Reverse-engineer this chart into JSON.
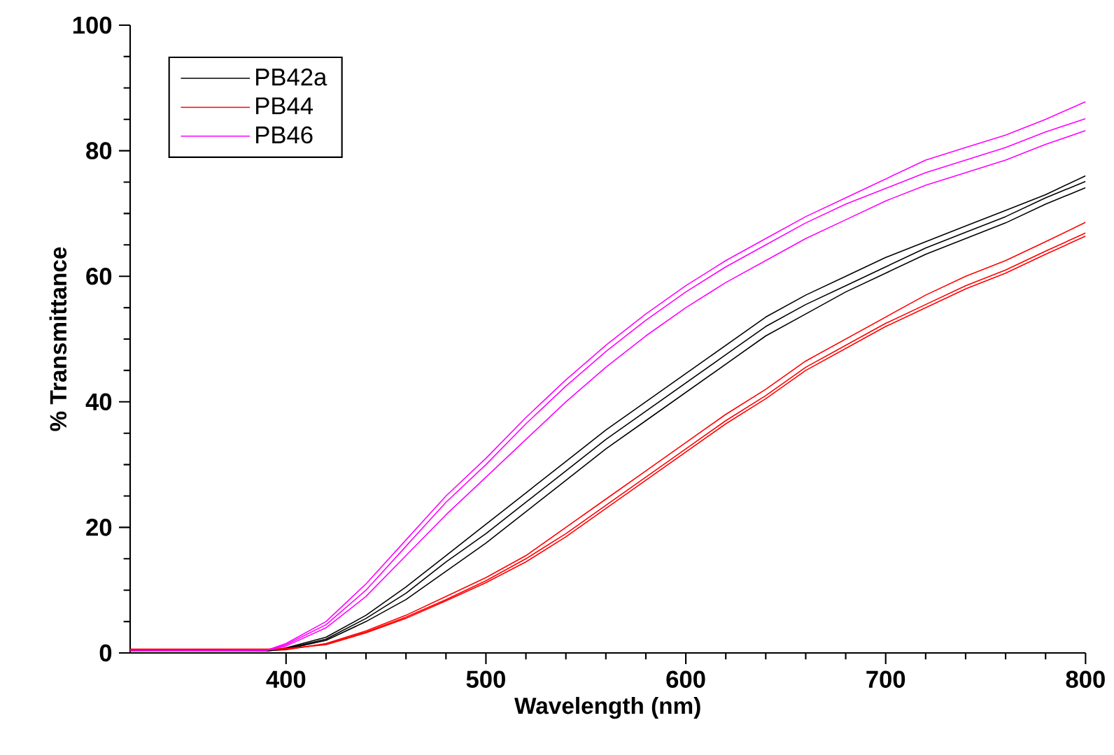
{
  "chart_data": {
    "type": "line",
    "xlabel": "Wavelength (nm)",
    "ylabel": "% Transmittance",
    "x": [
      322,
      390,
      400,
      420,
      440,
      460,
      480,
      500,
      520,
      540,
      560,
      580,
      600,
      620,
      640,
      660,
      680,
      700,
      720,
      740,
      760,
      780,
      800
    ],
    "series": [
      {
        "name": "PB42a",
        "color": "#000000",
        "values": [
          0.3,
          0.3,
          0.8,
          2.5,
          6,
          10.5,
          15.5,
          20.5,
          25.5,
          30.5,
          35.5,
          40,
          44.5,
          49,
          53.5,
          57,
          60,
          63,
          65.5,
          68,
          70.5,
          73,
          76
        ]
      },
      {
        "name": "PB44",
        "color": "#ff0000",
        "values": [
          0.4,
          0.4,
          0.5,
          1.5,
          3.5,
          6,
          9,
          12,
          15.5,
          20,
          24.5,
          29,
          33.5,
          38,
          42,
          46.5,
          50,
          53.5,
          57,
          60,
          62.5,
          65.5,
          68.6
        ]
      },
      {
        "name": "PB46",
        "color": "#ff00ff",
        "values": [
          0.3,
          0.4,
          1.5,
          5,
          11,
          18,
          25,
          31,
          37.5,
          43.5,
          49,
          54,
          58.5,
          62.5,
          66,
          69.5,
          72.5,
          75.5,
          78.5,
          80.5,
          82.5,
          85,
          87.8
        ]
      },
      {
        "color": "#000000",
        "values": [
          0.3,
          0.3,
          0.7,
          2.2,
          5.5,
          9.5,
          14.5,
          19,
          24,
          29,
          34,
          38.5,
          43,
          47.5,
          52,
          55.5,
          58.5,
          61.5,
          64.5,
          67,
          69.5,
          72.5,
          75.1
        ]
      },
      {
        "color": "#000000",
        "values": [
          0.3,
          0.3,
          0.6,
          2,
          5,
          8.5,
          13,
          17.5,
          22.5,
          27.5,
          32.5,
          37,
          41.5,
          46,
          50.5,
          54,
          57.5,
          60.5,
          63.5,
          66,
          68.5,
          71.5,
          74.1
        ]
      },
      {
        "color": "#ff0000",
        "values": [
          0.5,
          0.5,
          0.6,
          1.4,
          3.3,
          5.7,
          8.5,
          11.5,
          15,
          19,
          23.5,
          28,
          32.5,
          37,
          41,
          45.5,
          49,
          52.5,
          55.5,
          58.5,
          61,
          64,
          66.9
        ]
      },
      {
        "color": "#ff0000",
        "values": [
          0.6,
          0.6,
          0.7,
          1.3,
          3.2,
          5.5,
          8.3,
          11.2,
          14.5,
          18.5,
          23,
          27.5,
          32,
          36.5,
          40.5,
          45,
          48.5,
          52,
          55,
          58,
          60.5,
          63.5,
          66.4
        ]
      },
      {
        "color": "#ff00ff",
        "values": [
          0.3,
          0.4,
          1.3,
          4.5,
          10,
          17,
          24,
          30,
          36.5,
          42.5,
          48,
          53,
          57.5,
          61.5,
          65,
          68.5,
          71.5,
          74,
          76.5,
          78.5,
          80.5,
          83,
          85.1
        ]
      },
      {
        "color": "#ff00ff",
        "values": [
          0.3,
          0.4,
          1.1,
          4,
          9,
          15.5,
          22,
          28,
          34,
          40,
          45.5,
          50.5,
          55,
          59,
          62.5,
          66,
          69,
          72,
          74.5,
          76.5,
          78.5,
          81,
          83.2
        ]
      }
    ],
    "xlim": [
      322,
      800
    ],
    "xticks": [
      400,
      500,
      600,
      700,
      800
    ],
    "ylim": [
      0,
      100
    ],
    "yticks": [
      0,
      20,
      40,
      60,
      80,
      100
    ],
    "legend": "top left",
    "marker": "none",
    "line_style": "solid",
    "grid": false
  }
}
